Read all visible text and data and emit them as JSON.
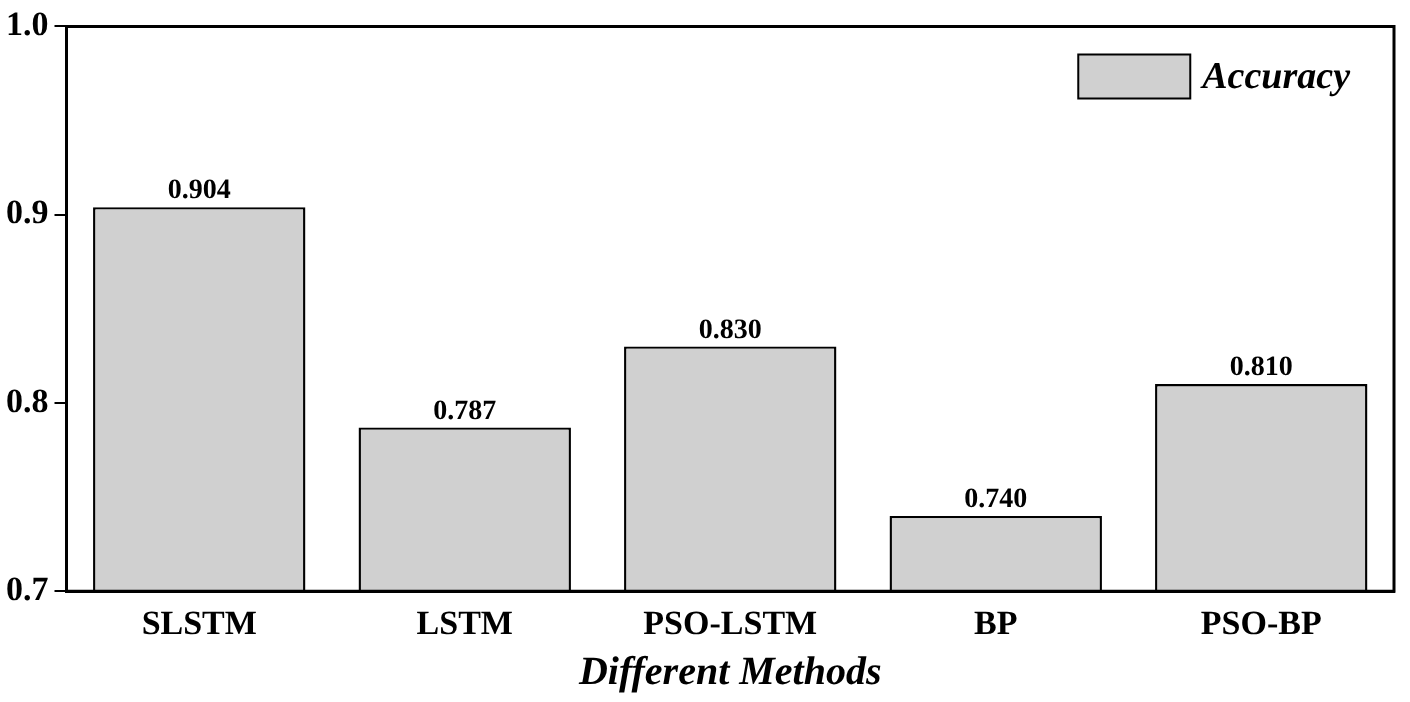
{
  "chart_data": {
    "type": "bar",
    "xlabel": "Different Methods",
    "categories": [
      "SLSTM",
      "LSTM",
      "PSO-LSTM",
      "BP",
      "PSO-BP"
    ],
    "series": [
      {
        "name": "Accuracy",
        "color": "#d0d0d0",
        "values": [
          0.904,
          0.787,
          0.83,
          0.74,
          0.81
        ],
        "value_labels": [
          "0.904",
          "0.787",
          "0.830",
          "0.740",
          "0.810"
        ]
      }
    ],
    "ylim": [
      0.7,
      1.0
    ],
    "yticks": [
      0.7,
      0.8,
      0.9,
      {
        "value": 1,
        "label": "1.0"
      }
    ],
    "grid": false,
    "legend": "top right"
  }
}
